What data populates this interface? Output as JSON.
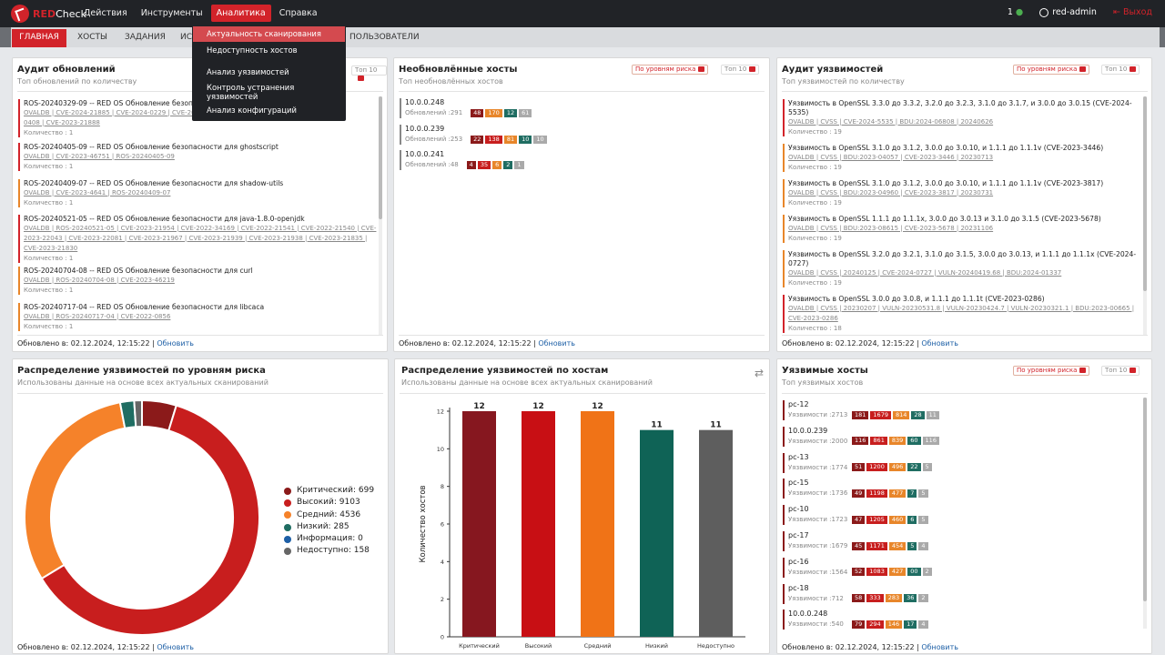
{
  "app": {
    "logo_red": "RED",
    "logo_rest": "Check"
  },
  "nav": [
    "Действия",
    "Инструменты",
    "Аналитика",
    "Справка"
  ],
  "topright": {
    "count": "1",
    "user": "red-admin",
    "logout": "Выход"
  },
  "subnav": [
    "ГЛАВНАЯ",
    "ХОСТЫ",
    "ЗАДАНИЯ",
    "ИС",
    "ПОЛЬЗОВАТЕЛИ"
  ],
  "dropdown": [
    "Актуальность сканирования",
    "Недоступность хостов",
    "Анализ уязвимостей",
    "Контроль устранения уязвимостей",
    "Анализ конфигураций"
  ],
  "audit": {
    "title": "Аудит обновлений",
    "subtitle": "Топ обновлений по количеству",
    "top": "Топ 10",
    "footer_label": "Обновлено в: 02.12.2024, 12:15:22",
    "footer_link": "Обновить",
    "items": [
      {
        "t": "ROS-20240329-09 -- RED OS Обновление безопа",
        "l": "OVALDB | CVE-2024-21885 | CVE-2024-0229 | CVE-20",
        "l2": "0408 | CVE-2023-21888",
        "c": "Количество : 1"
      },
      {
        "t": "ROS-20240405-09 -- RED OS Обновление безопасности для ghostscript",
        "l": "OVALDB | CVE-2023-46751 | ROS-20240405-09",
        "c": "Количество : 1"
      },
      {
        "t": "ROS-20240409-07 -- RED OS Обновление безопасности для shadow-utils",
        "l": "OVALDB | CVE-2023-4641 | ROS-20240409-07",
        "c": "Количество : 1"
      },
      {
        "t": "ROS-20240521-05 -- RED OS Обновление безопасности для java-1.8.0-openjdk",
        "l": "OVALDB | ROS-20240521-05 | CVE-2023-21954 | CVE-2022-34169 | CVE-2022-21541 | CVE-2022-21540 | CVE-",
        "l2": "2023-22043 | CVE-2023-22081 | CVE-2023-21967 | CVE-2023-21939 | CVE-2023-21938 | CVE-2023-21835 |",
        "l3": "CVE-2023-21830",
        "c": "Количество : 1"
      },
      {
        "t": "ROS-20240704-08 -- RED OS Обновление безопасности для curl",
        "l": "OVALDB | ROS-20240704-08 | CVE-2023-46219",
        "c": "Количество : 1"
      },
      {
        "t": "ROS-20240717-04 -- RED OS Обновление безопасности для libcaca",
        "l": "OVALDB | ROS-20240717-04 | CVE-2022-0856",
        "c": "Количество : 1"
      }
    ]
  },
  "stale": {
    "title": "Необновлённые хосты",
    "subtitle": "Топ необновлённых хостов",
    "filter": "По уровням риска",
    "top": "Топ 10",
    "footer_label": "Обновлено в: 02.12.2024, 12:15:22",
    "footer_link": "Обновить",
    "hosts": [
      {
        "name": "10.0.0.248",
        "count": "Обновлений :291",
        "b": [
          "48",
          "170",
          "12",
          "61"
        ],
        "k": [
          "crit",
          "med",
          "low",
          "na"
        ]
      },
      {
        "name": "10.0.0.239",
        "count": "Обновлений :253",
        "b": [
          "22",
          "138",
          "81",
          "10",
          "10"
        ],
        "k": [
          "crit",
          "high",
          "med",
          "low",
          "na"
        ]
      },
      {
        "name": "10.0.0.241",
        "count": "Обновлений :48",
        "b": [
          "4",
          "35",
          "6",
          "2",
          "1"
        ],
        "k": [
          "crit",
          "high",
          "med",
          "low",
          "na"
        ]
      }
    ]
  },
  "vulnaudit": {
    "title": "Аудит уязвимостей",
    "subtitle": "Топ уязвимостей по количеству",
    "filter": "По уровням риска",
    "top": "Топ 10",
    "footer_label": "Обновлено в: 02.12.2024, 12:15:22",
    "footer_link": "Обновить",
    "items": [
      {
        "t": "Уязвимость в OpenSSL 3.3.0 до 3.3.2, 3.2.0 до 3.2.3, 3.1.0 до 3.1.7, и 3.0.0 до 3.0.15 (CVE-2024-",
        "t2": "5535)",
        "l": "OVALDB | CVSS | CVE-2024-5535 | BDU:2024-06808 | 20240626",
        "c": "Количество : 19",
        "k": "high"
      },
      {
        "t": "Уязвимость в OpenSSL 3.1.0 до 3.1.2, 3.0.0 до 3.0.10, и 1.1.1 до 1.1.1v (CVE-2023-3446)",
        "l": "OVALDB | CVSS | BDU:2023-04057 | CVE-2023-3446 | 20230713",
        "c": "Количество : 19",
        "k": "med"
      },
      {
        "t": "Уязвимость в OpenSSL 3.1.0 до 3.1.2, 3.0.0 до 3.0.10, и 1.1.1 до 1.1.1v (CVE-2023-3817)",
        "l": "OVALDB | CVSS | BDU:2023-04960 | CVE-2023-3817 | 20230731",
        "c": "Количество : 19",
        "k": "med"
      },
      {
        "t": "Уязвимость в OpenSSL 1.1.1 до 1.1.1x, 3.0.0 до 3.0.13 и 3.1.0 до 3.1.5 (CVE-2023-5678)",
        "l": "OVALDB | CVSS | BDU:2023-08615 | CVE-2023-5678 | 20231106",
        "c": "Количество : 19",
        "k": "med"
      },
      {
        "t": "Уязвимость в OpenSSL 3.2.0 до 3.2.1, 3.1.0 до 3.1.5, 3.0.0 до 3.0.13, и 1.1.1 до 1.1.1x (CVE-2024-",
        "t2": "0727)",
        "l": "OVALDB | CVSS | 20240125 | CVE-2024-0727 | VULN-20240419.68 | BDU:2024-01337",
        "c": "Количество : 19",
        "k": "med"
      },
      {
        "t": "Уязвимость в OpenSSL 3.0.0 до 3.0.8, и 1.1.1 до 1.1.1t (CVE-2023-0286)",
        "l": "OVALDB | CVSS | 20230207 | VULN-20230531.8 | VULN-20230424.7 | VULN-20230321.1 | BDU:2023-00665 |",
        "l2": "CVE-2023-0286",
        "c": "Количество : 18",
        "k": "high"
      }
    ]
  },
  "riskdist": {
    "title": "Распределение уязвимостей по уровням риска",
    "subtitle": "Использованы данные на основе всех актуальных сканирований",
    "footer_label": "Обновлено в: 02.12.2024, 12:15:22",
    "footer_link": "Обновить",
    "legend": [
      "Критический: 699",
      "Высокий: 9103",
      "Средний: 4536",
      "Низкий: 285",
      "Информация: 0",
      "Недоступно: 158"
    ]
  },
  "hostdist": {
    "title": "Распределение уязвимостей по хостам",
    "subtitle": "Использованы данные на основе всех актуальных сканирований"
  },
  "vulnhosts": {
    "title": "Уязвимые хосты",
    "subtitle": "Топ уязвимых хостов",
    "filter": "По уровням риска",
    "top": "Топ 10",
    "footer_label": "Обновлено в: 02.12.2024, 12:15:22",
    "footer_link": "Обновить",
    "hosts": [
      {
        "name": "pc-12",
        "count": "Уязвимости :2713",
        "b": [
          "181",
          "1679",
          "814",
          "28",
          "11"
        ]
      },
      {
        "name": "10.0.0.239",
        "count": "Уязвимости :2000",
        "b": [
          "116",
          "861",
          "839",
          "60",
          "116"
        ]
      },
      {
        "name": "pc-13",
        "count": "Уязвимости :1774",
        "b": [
          "51",
          "1200",
          "496",
          "22",
          "5"
        ]
      },
      {
        "name": "pc-15",
        "count": "Уязвимости :1736",
        "b": [
          "49",
          "1198",
          "477",
          "7",
          "5"
        ]
      },
      {
        "name": "pc-10",
        "count": "Уязвимости :1723",
        "b": [
          "47",
          "1205",
          "460",
          "6",
          "5"
        ]
      },
      {
        "name": "pc-17",
        "count": "Уязвимости :1679",
        "b": [
          "45",
          "1171",
          "454",
          "5",
          "4"
        ]
      },
      {
        "name": "pc-16",
        "count": "Уязвимости :1564",
        "b": [
          "52",
          "1083",
          "427",
          "00",
          "2"
        ]
      },
      {
        "name": "pc-18",
        "count": "Уязвимости :712",
        "b": [
          "58",
          "333",
          "283",
          "36",
          "2"
        ]
      },
      {
        "name": "10.0.0.248",
        "count": "Уязвимости :540",
        "b": [
          "79",
          "294",
          "146",
          "17",
          "4"
        ]
      }
    ]
  },
  "chart_data": [
    {
      "type": "pie",
      "categories": [
        "Критический",
        "Высокий",
        "Средний",
        "Низкий",
        "Информация",
        "Недоступно"
      ],
      "values": [
        699,
        9103,
        4536,
        285,
        0,
        158
      ],
      "colors": [
        "#8b1a1a",
        "#c81e1e",
        "#f5822a",
        "#1f6d62",
        "#1d5fa6",
        "#666666"
      ]
    },
    {
      "type": "bar",
      "categories": [
        "Критический",
        "Высокий",
        "Средний",
        "Низкий",
        "Недоступно"
      ],
      "values": [
        12,
        12,
        12,
        11,
        11
      ],
      "ylabel": "Количество хостов",
      "ylim": [
        0,
        12
      ],
      "yticks": [
        0,
        2,
        4,
        6,
        8,
        10,
        12
      ],
      "colors": [
        "#86171f",
        "#c80f14",
        "#f07317",
        "#0f6356",
        "#5e5e5e"
      ]
    }
  ]
}
